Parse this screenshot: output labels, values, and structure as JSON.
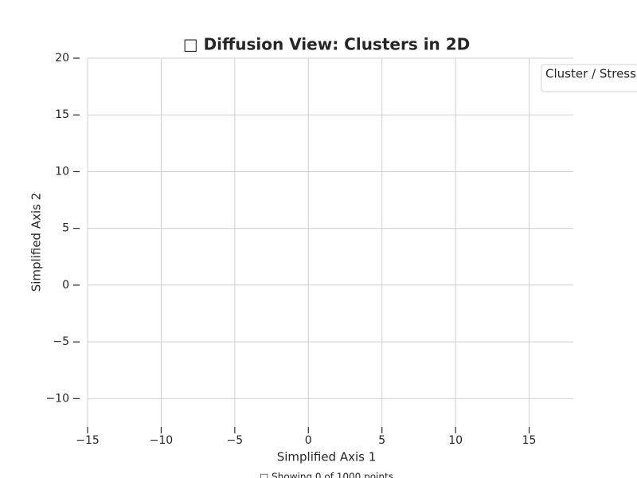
{
  "chart_data": {
    "type": "scatter",
    "title": "□ Diffusion View: Clusters in 2D",
    "x_label": "Simplified Axis 1",
    "y_label": "Simplified Axis 2",
    "legend_title": "Cluster / Stress",
    "legend_position": "upper right",
    "footer": "□ Showing 0 of 1000 points",
    "series": [],
    "xlim": [
      -15,
      18
    ],
    "ylim": [
      -12.5,
      20
    ],
    "xticks": [
      {
        "value": -15,
        "label": "−15"
      },
      {
        "value": -10,
        "label": "−10"
      },
      {
        "value": -5,
        "label": "−5"
      },
      0,
      5,
      10,
      15
    ],
    "yticks": [
      {
        "value": -10,
        "label": "−10"
      },
      {
        "value": -5,
        "label": "−5"
      },
      0,
      5,
      10,
      15,
      20
    ],
    "grid": true
  }
}
